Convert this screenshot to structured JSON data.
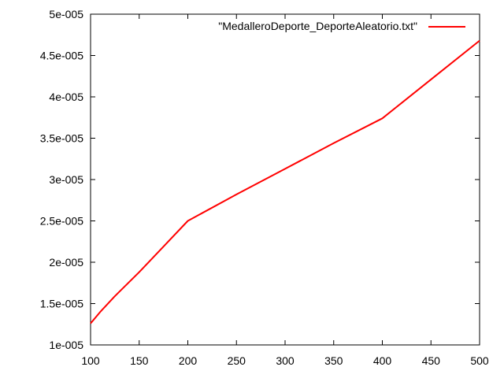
{
  "chart_data": {
    "type": "line",
    "title": "",
    "xlabel": "",
    "ylabel": "",
    "xlim": [
      100,
      500
    ],
    "ylim": [
      1e-05,
      5e-05
    ],
    "x_ticks": [
      100,
      150,
      200,
      250,
      300,
      350,
      400,
      450,
      500
    ],
    "x_tick_labels": [
      "100",
      "150",
      "200",
      "250",
      "300",
      "350",
      "400",
      "450",
      "500"
    ],
    "y_ticks": [
      1e-05,
      1.5e-05,
      2e-05,
      2.5e-05,
      3e-05,
      3.5e-05,
      4e-05,
      4.5e-05,
      5e-05
    ],
    "y_tick_labels": [
      "1e-005",
      "1.5e-005",
      "2e-005",
      "2.5e-005",
      "3e-005",
      "3.5e-005",
      "4e-005",
      "4.5e-005",
      "5e-005"
    ],
    "grid": false,
    "legend_position": "top-right",
    "series": [
      {
        "name": "\"MedalleroDeporte_DeporteAleatorio.txt\"",
        "color": "#ff0000",
        "x": [
          100,
          110,
          125,
          150,
          175,
          200,
          250,
          300,
          350,
          400,
          450,
          500
        ],
        "y": [
          1.26e-05,
          1.4e-05,
          1.59e-05,
          1.88e-05,
          2.19e-05,
          2.5e-05,
          2.82e-05,
          3.13e-05,
          3.44e-05,
          3.74e-05,
          4.21e-05,
          4.68e-05
        ]
      }
    ]
  }
}
